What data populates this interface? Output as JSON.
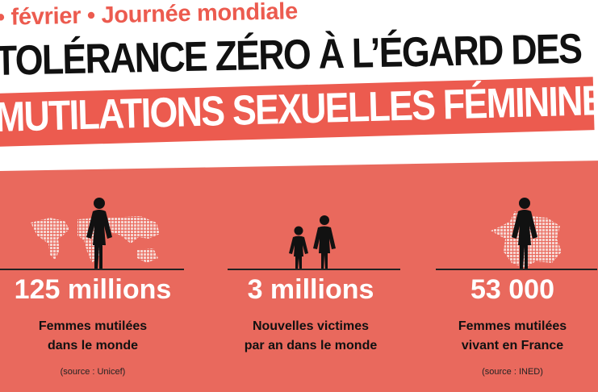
{
  "header": {
    "eyebrow": "• février • Journée mondiale",
    "title_line1": "TOLÉRANCE ZÉRO À L’ÉGARD DES",
    "title_line2": "MUTILATIONS SEXUELLES FÉMININES"
  },
  "colors": {
    "accent": "#ec5b4f",
    "panel": "#e9695d",
    "ink": "#111111"
  },
  "stats": [
    {
      "value": "125 millions",
      "description_line1": "Femmes mutilées",
      "description_line2": "dans le monde",
      "source": "(source : Unicef)",
      "icon": "woman-over-world-map-icon"
    },
    {
      "value": "3 millions",
      "description_line1": "Nouvelles victimes",
      "description_line2": "par an dans le monde",
      "source": "",
      "icon": "girl-and-woman-icon"
    },
    {
      "value": "53 000",
      "description_line1": "Femmes mutilées",
      "description_line2": "vivant en France",
      "source": "(source : INED)",
      "icon": "woman-over-france-map-icon"
    }
  ]
}
